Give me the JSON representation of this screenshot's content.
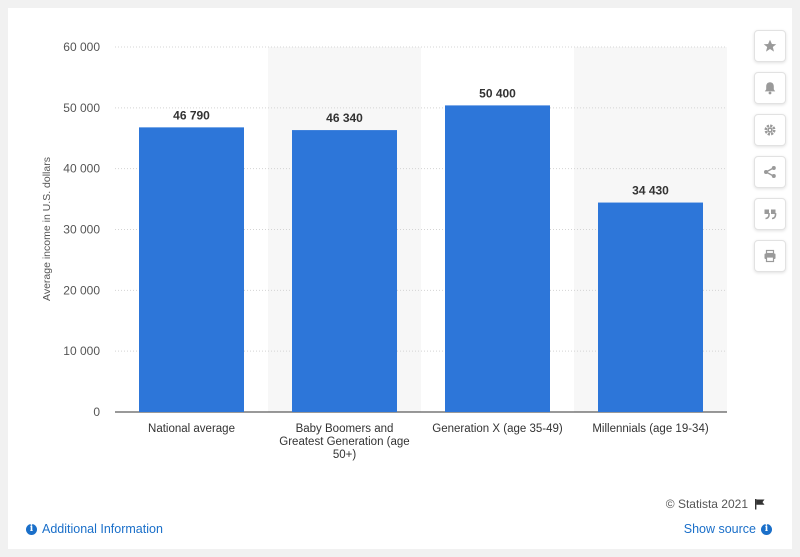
{
  "chart_data": {
    "type": "bar",
    "title": "",
    "xlabel": "",
    "ylabel": "Average income in U.S. dollars",
    "categories": [
      [
        "National average"
      ],
      [
        "Baby Boomers and",
        "Greatest Generation (age",
        "50+)"
      ],
      [
        "Generation X (age 35-49)"
      ],
      [
        "Millennials (age 19-34)"
      ]
    ],
    "values": [
      46790,
      46340,
      50400,
      34430
    ],
    "value_labels": [
      "46 790",
      "46 340",
      "50 400",
      "34 430"
    ],
    "ylim": [
      0,
      60000
    ],
    "yticks": [
      0,
      10000,
      20000,
      30000,
      40000,
      50000,
      60000
    ],
    "ytick_labels": [
      "0",
      "10 000",
      "20 000",
      "30 000",
      "40 000",
      "50 000",
      "60 000"
    ],
    "grid": true,
    "bar_color": "#2d76d9",
    "band_color": "#f7f7f7"
  },
  "toolbar": {
    "buttons": [
      {
        "name": "star-button",
        "icon": "star-icon"
      },
      {
        "name": "bell-button",
        "icon": "bell-icon"
      },
      {
        "name": "settings-button",
        "icon": "gear-icon"
      },
      {
        "name": "share-button",
        "icon": "share-icon"
      },
      {
        "name": "cite-button",
        "icon": "quote-icon"
      },
      {
        "name": "print-button",
        "icon": "print-icon"
      }
    ]
  },
  "footer": {
    "copyright": "© Statista 2021",
    "additional_info": "Additional Information",
    "show_source": "Show source"
  }
}
